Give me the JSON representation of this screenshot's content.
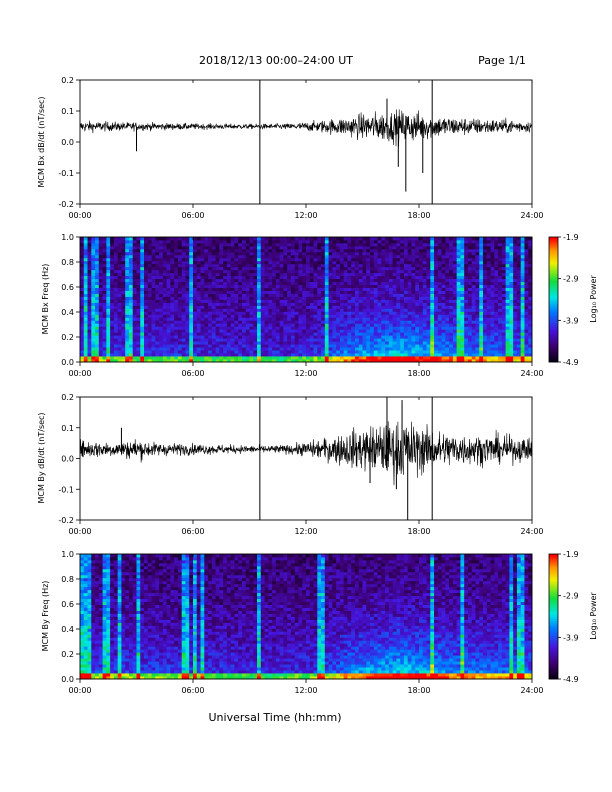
{
  "header": {
    "title": "2018/12/13   00:00–24:00 UT",
    "page": "Page 1/1"
  },
  "xlabel": "Universal Time (hh:mm)",
  "xticks": [
    "00:00",
    "06:00",
    "12:00",
    "18:00",
    "24:00"
  ],
  "chart_data": [
    {
      "type": "line",
      "ylabel": "MCM Bx dB/dt (nT/sec)",
      "xlim": [
        0,
        24
      ],
      "ylim": [
        -0.2,
        0.2
      ],
      "yticks": [
        "0.2",
        "0.1",
        "0.0",
        "-0.1",
        "-0.2"
      ],
      "baseline": 0.05,
      "envelope": {
        "hours": [
          0,
          2,
          4,
          6,
          8,
          9.5,
          11,
          12,
          13,
          14,
          15,
          16,
          17,
          18,
          19,
          20,
          21,
          22,
          23,
          24
        ],
        "amplitude": [
          0.015,
          0.012,
          0.01,
          0.008,
          0.007,
          0.007,
          0.008,
          0.012,
          0.018,
          0.025,
          0.035,
          0.04,
          0.045,
          0.04,
          0.03,
          0.025,
          0.022,
          0.02,
          0.018,
          0.015
        ]
      },
      "spikes": [
        {
          "hour": 9.55,
          "value": -0.22
        },
        {
          "hour": 9.55,
          "value": 0.2
        },
        {
          "hour": 18.7,
          "value": -0.22
        },
        {
          "hour": 18.7,
          "value": 0.2
        },
        {
          "hour": 17.3,
          "value": -0.16
        },
        {
          "hour": 16.9,
          "value": -0.08
        },
        {
          "hour": 18.2,
          "value": -0.1
        },
        {
          "hour": 16.3,
          "value": 0.14
        },
        {
          "hour": 3.0,
          "value": -0.03
        }
      ]
    },
    {
      "type": "heatmap",
      "ylabel": "MCM Bx Freq (Hz)",
      "xlim": [
        0,
        24
      ],
      "ylim": [
        0,
        1.0
      ],
      "yticks": [
        "1.0",
        "0.8",
        "0.6",
        "0.4",
        "0.2",
        "0.0"
      ],
      "colorbar": {
        "label": "Log₁₀ Power",
        "ticks": [
          "-1.9",
          "-2.9",
          "-3.9",
          "-4.9"
        ],
        "range": [
          -4.9,
          -1.9
        ]
      },
      "activity": {
        "hours": [
          0,
          2,
          4,
          6,
          8,
          10,
          12,
          13,
          14,
          15,
          16,
          17,
          18,
          19,
          20,
          21,
          22,
          23,
          24
        ],
        "level": [
          0.3,
          0.25,
          0.22,
          0.2,
          0.18,
          0.15,
          0.2,
          0.3,
          0.55,
          0.7,
          0.8,
          0.85,
          0.8,
          0.7,
          0.6,
          0.55,
          0.5,
          0.45,
          0.4
        ]
      },
      "streaks": [
        0.3,
        0.8,
        1.5,
        2.6,
        3.3,
        5.9,
        9.55,
        13.1,
        18.7,
        20.2,
        21.3,
        22.8,
        23.5
      ]
    },
    {
      "type": "line",
      "ylabel": "MCM By dB/dt (nT/sec)",
      "xlim": [
        0,
        24
      ],
      "ylim": [
        -0.2,
        0.2
      ],
      "yticks": [
        "0.2",
        "0.1",
        "0.0",
        "-0.1",
        "-0.2"
      ],
      "baseline": 0.03,
      "envelope": {
        "hours": [
          0,
          2,
          3,
          4,
          6,
          8,
          9.5,
          11,
          12,
          13,
          14,
          15,
          16,
          17,
          18,
          19,
          20,
          21,
          22,
          23,
          24
        ],
        "amplitude": [
          0.025,
          0.02,
          0.03,
          0.018,
          0.015,
          0.012,
          0.01,
          0.012,
          0.02,
          0.03,
          0.045,
          0.06,
          0.07,
          0.08,
          0.07,
          0.05,
          0.045,
          0.04,
          0.04,
          0.035,
          0.03
        ]
      },
      "spikes": [
        {
          "hour": 9.55,
          "value": -0.22
        },
        {
          "hour": 9.55,
          "value": 0.2
        },
        {
          "hour": 18.7,
          "value": -0.22
        },
        {
          "hour": 18.7,
          "value": 0.2
        },
        {
          "hour": 16.3,
          "value": 0.2
        },
        {
          "hour": 17.4,
          "value": -0.2
        },
        {
          "hour": 16.8,
          "value": -0.1
        },
        {
          "hour": 15.4,
          "value": -0.08
        },
        {
          "hour": 17.1,
          "value": 0.19
        },
        {
          "hour": 2.2,
          "value": 0.1
        }
      ]
    },
    {
      "type": "heatmap",
      "ylabel": "MCM By Freq (Hz)",
      "xlim": [
        0,
        24
      ],
      "ylim": [
        0,
        1.0
      ],
      "yticks": [
        "1.0",
        "0.8",
        "0.6",
        "0.4",
        "0.2",
        "0.0"
      ],
      "colorbar": {
        "label": "Log₁₀ Power",
        "ticks": [
          "-1.9",
          "-2.9",
          "-3.9",
          "-4.9"
        ],
        "range": [
          -4.9,
          -1.9
        ]
      },
      "activity": {
        "hours": [
          0,
          2,
          4,
          6,
          8,
          10,
          12,
          13,
          14,
          15,
          16,
          17,
          18,
          19,
          20,
          21,
          22,
          23,
          24
        ],
        "level": [
          0.35,
          0.3,
          0.28,
          0.25,
          0.2,
          0.18,
          0.22,
          0.3,
          0.5,
          0.68,
          0.78,
          0.85,
          0.8,
          0.7,
          0.6,
          0.55,
          0.52,
          0.48,
          0.45
        ]
      },
      "streaks": [
        0.2,
        0.5,
        1.4,
        2.1,
        3.1,
        5.6,
        6.1,
        6.5,
        9.55,
        12.8,
        18.7,
        20.3,
        22.9,
        23.4
      ]
    }
  ]
}
